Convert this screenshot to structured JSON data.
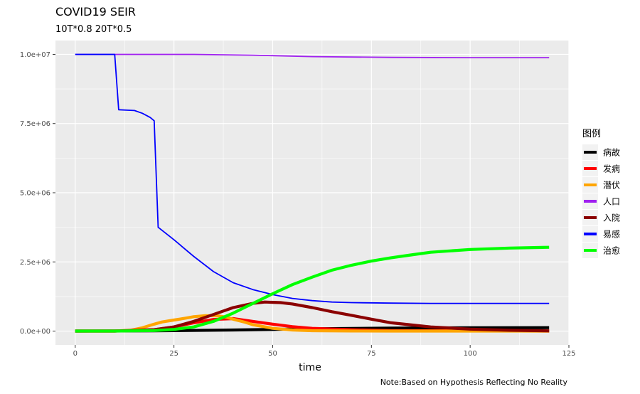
{
  "chart_data": {
    "type": "line",
    "title": "COVID19 SEIR",
    "subtitle": "10T*0.8 20T*0.5",
    "xlabel": "time",
    "ylabel": "",
    "caption": "Note:Based on Hypothesis Reflecting No Reality",
    "xlim": [
      -5,
      125
    ],
    "ylim": [
      -500000,
      10500000
    ],
    "x_ticks": [
      0,
      25,
      50,
      75,
      100,
      125
    ],
    "x_tick_labels": [
      "0",
      "25",
      "50",
      "75",
      "100",
      "125"
    ],
    "y_ticks": [
      0,
      2500000,
      5000000,
      7500000,
      10000000
    ],
    "y_tick_labels": [
      "0.0e+00",
      "2.5e+06",
      "5.0e+06",
      "7.5e+06",
      "1.0e+07"
    ],
    "grid": true,
    "legend_title": "图例",
    "legend_position": "right",
    "series": [
      {
        "name": "病故",
        "color": "#000000",
        "width": "thick",
        "x": [
          0,
          20,
          40,
          60,
          80,
          100,
          120
        ],
        "y": [
          0,
          10000,
          40000,
          80000,
          110000,
          120000,
          125000
        ]
      },
      {
        "name": "发病",
        "color": "#ff0000",
        "width": "thick",
        "x": [
          0,
          10,
          20,
          25,
          30,
          35,
          40,
          45,
          50,
          55,
          60,
          70,
          80,
          120
        ],
        "y": [
          0,
          0,
          50000,
          150000,
          300000,
          420000,
          450000,
          350000,
          250000,
          160000,
          100000,
          50000,
          20000,
          0
        ]
      },
      {
        "name": "潜伏",
        "color": "#ffa500",
        "width": "thick",
        "x": [
          0,
          10,
          14,
          17,
          20,
          22,
          25,
          28,
          30,
          33,
          36,
          38,
          40,
          43,
          45,
          50,
          55,
          60,
          70,
          80,
          120
        ],
        "y": [
          0,
          0,
          30000,
          120000,
          250000,
          330000,
          400000,
          470000,
          520000,
          560000,
          550000,
          510000,
          430000,
          320000,
          230000,
          100000,
          40000,
          15000,
          5000,
          0,
          0
        ]
      },
      {
        "name": "人口",
        "color": "#a020f0",
        "width": "normal",
        "x": [
          0,
          30,
          45,
          60,
          80,
          100,
          120
        ],
        "y": [
          10000000,
          10000000,
          9970000,
          9920000,
          9890000,
          9880000,
          9880000
        ]
      },
      {
        "name": "入院",
        "color": "#8b0000",
        "width": "thick",
        "x": [
          0,
          10,
          20,
          25,
          30,
          35,
          40,
          45,
          48,
          52,
          55,
          60,
          65,
          70,
          75,
          80,
          90,
          100,
          110,
          120
        ],
        "y": [
          0,
          0,
          50000,
          150000,
          350000,
          600000,
          850000,
          1000000,
          1050000,
          1030000,
          980000,
          850000,
          700000,
          570000,
          430000,
          300000,
          150000,
          70000,
          30000,
          10000
        ]
      },
      {
        "name": "易感",
        "color": "#0000ff",
        "width": "normal",
        "x": [
          0,
          10,
          11,
          15,
          17,
          19,
          20,
          21,
          25,
          30,
          35,
          40,
          45,
          50,
          55,
          60,
          65,
          70,
          80,
          90,
          100,
          110,
          120
        ],
        "y": [
          10000000,
          10000000,
          8000000,
          7970000,
          7870000,
          7720000,
          7600000,
          3750000,
          3300000,
          2700000,
          2150000,
          1750000,
          1500000,
          1320000,
          1180000,
          1100000,
          1050000,
          1030000,
          1010000,
          1000000,
          1000000,
          1000000,
          1000000
        ]
      },
      {
        "name": "治愈",
        "color": "#00ff00",
        "width": "thick",
        "x": [
          0,
          10,
          20,
          25,
          30,
          35,
          40,
          45,
          50,
          55,
          60,
          65,
          70,
          75,
          80,
          85,
          90,
          100,
          110,
          120
        ],
        "y": [
          0,
          0,
          20000,
          60000,
          150000,
          350000,
          650000,
          1000000,
          1350000,
          1680000,
          1950000,
          2200000,
          2380000,
          2530000,
          2650000,
          2750000,
          2850000,
          2950000,
          3000000,
          3030000
        ]
      }
    ]
  }
}
